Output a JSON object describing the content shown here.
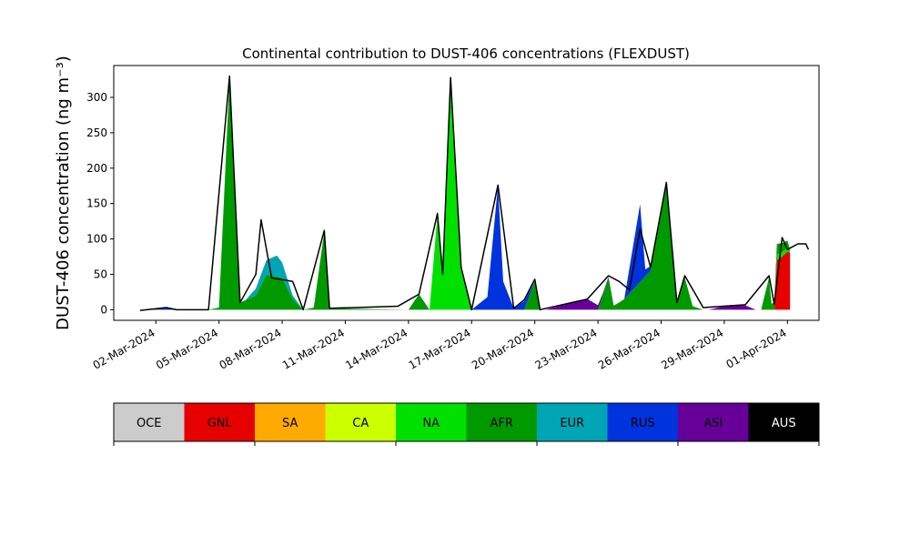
{
  "chart_data": {
    "type": "area",
    "stacked": true,
    "title": "Continental contribution to DUST-406 concentrations (FLEXDUST)",
    "ylabel": "DUST-406 concentration (ng m⁻³)",
    "xlabel": "",
    "x_ticks": [
      "02-Mar-2024",
      "05-Mar-2024",
      "08-Mar-2024",
      "11-Mar-2024",
      "14-Mar-2024",
      "17-Mar-2024",
      "20-Mar-2024",
      "23-Mar-2024",
      "26-Mar-2024",
      "29-Mar-2024",
      "01-Apr-2024"
    ],
    "y_ticks": [
      0,
      50,
      100,
      150,
      200,
      250,
      300
    ],
    "xlim": [
      "2024-02-29T00:00",
      "2024-04-02T12:00"
    ],
    "ylim": [
      -15,
      345
    ],
    "grid": false,
    "legend_placement": "bottom colorbar",
    "series": [
      {
        "name": "OCE",
        "color": "#cccccc",
        "points": []
      },
      {
        "name": "GNL",
        "color": "#e60000",
        "points": [
          [
            "2024-03-31T09:00",
            0
          ],
          [
            "2024-03-31T12:00",
            70
          ],
          [
            "2024-03-31T18:00",
            75
          ],
          [
            "2024-04-01T00:00",
            82
          ],
          [
            "2024-04-01T03:00",
            80
          ]
        ]
      },
      {
        "name": "SA",
        "color": "#ffaa00",
        "points": []
      },
      {
        "name": "CA",
        "color": "#ccff00",
        "points": []
      },
      {
        "name": "NA",
        "color": "#00e000",
        "points": [
          [
            "2024-03-15T00:00",
            0
          ],
          [
            "2024-03-15T09:00",
            135
          ],
          [
            "2024-03-15T15:00",
            50
          ],
          [
            "2024-03-16T00:00",
            326
          ],
          [
            "2024-03-16T12:00",
            60
          ],
          [
            "2024-03-17T00:00",
            0
          ],
          [
            "2024-03-31T09:00",
            0
          ],
          [
            "2024-03-31T12:00",
            8
          ],
          [
            "2024-04-01T03:00",
            5
          ]
        ]
      },
      {
        "name": "AFR",
        "color": "#009900",
        "points": [
          [
            "2024-03-04T12:00",
            0
          ],
          [
            "2024-03-05T00:00",
            3
          ],
          [
            "2024-03-05T12:00",
            328
          ],
          [
            "2024-03-06T00:00",
            10
          ],
          [
            "2024-03-06T18:00",
            20
          ],
          [
            "2024-03-07T06:00",
            50
          ],
          [
            "2024-03-08T00:00",
            45
          ],
          [
            "2024-03-08T12:00",
            15
          ],
          [
            "2024-03-09T00:00",
            0
          ],
          [
            "2024-03-09T12:00",
            3
          ],
          [
            "2024-03-10T00:00",
            110
          ],
          [
            "2024-03-10T06:00",
            2
          ],
          [
            "2024-03-14T00:00",
            0
          ],
          [
            "2024-03-14T12:00",
            22
          ],
          [
            "2024-03-15T00:00",
            0
          ],
          [
            "2024-03-19T12:00",
            0
          ],
          [
            "2024-03-20T00:00",
            40
          ],
          [
            "2024-03-20T06:00",
            0
          ],
          [
            "2024-03-23T00:00",
            0
          ],
          [
            "2024-03-23T12:00",
            45
          ],
          [
            "2024-03-23T18:00",
            5
          ],
          [
            "2024-03-24T06:00",
            15
          ],
          [
            "2024-03-25T12:00",
            55
          ],
          [
            "2024-03-26T06:00",
            178
          ],
          [
            "2024-03-26T18:00",
            10
          ],
          [
            "2024-03-27T03:00",
            45
          ],
          [
            "2024-03-27T12:00",
            5
          ],
          [
            "2024-03-28T00:00",
            0
          ],
          [
            "2024-03-30T18:00",
            0
          ],
          [
            "2024-03-31T03:00",
            45
          ],
          [
            "2024-03-31T06:00",
            8
          ],
          [
            "2024-03-31T12:00",
            15
          ],
          [
            "2024-04-01T00:00",
            10
          ]
        ]
      },
      {
        "name": "EUR",
        "color": "#00a5b5",
        "points": [
          [
            "2024-03-06T06:00",
            0
          ],
          [
            "2024-03-07T06:00",
            20
          ],
          [
            "2024-03-07T18:00",
            30
          ],
          [
            "2024-03-08T12:00",
            5
          ],
          [
            "2024-03-09T00:00",
            0
          ]
        ]
      },
      {
        "name": "RUS",
        "color": "#0033dd",
        "points": [
          [
            "2024-03-01T12:00",
            0
          ],
          [
            "2024-03-02T12:00",
            3
          ],
          [
            "2024-03-03T00:00",
            0
          ],
          [
            "2024-03-17T00:00",
            0
          ],
          [
            "2024-03-17T18:00",
            18
          ],
          [
            "2024-03-18T06:00",
            176
          ],
          [
            "2024-03-18T12:00",
            40
          ],
          [
            "2024-03-19T00:00",
            2
          ],
          [
            "2024-03-19T12:00",
            12
          ],
          [
            "2024-03-20T00:00",
            0
          ],
          [
            "2024-03-24T06:00",
            0
          ],
          [
            "2024-03-25T00:00",
            110
          ],
          [
            "2024-03-25T06:00",
            10
          ],
          [
            "2024-03-26T00:00",
            0
          ]
        ]
      },
      {
        "name": "ASI",
        "color": "#660099",
        "points": [
          [
            "2024-03-20T12:00",
            0
          ],
          [
            "2024-03-21T12:00",
            8
          ],
          [
            "2024-03-22T12:00",
            15
          ],
          [
            "2024-03-23T06:00",
            2
          ],
          [
            "2024-03-24T00:00",
            0
          ],
          [
            "2024-03-28T06:00",
            0
          ],
          [
            "2024-03-29T00:00",
            5
          ],
          [
            "2024-03-30T00:00",
            6
          ],
          [
            "2024-03-30T12:00",
            0
          ]
        ]
      },
      {
        "name": "AUS",
        "color": "#000000",
        "points": []
      }
    ],
    "total_line": {
      "color": "#000000",
      "points": [
        [
          "2024-03-01T06:00",
          -1
        ],
        [
          "2024-03-02T12:00",
          3
        ],
        [
          "2024-03-03T00:00",
          0
        ],
        [
          "2024-03-04T12:00",
          0
        ],
        [
          "2024-03-05T12:00",
          330
        ],
        [
          "2024-03-06T00:00",
          10
        ],
        [
          "2024-03-06T18:00",
          50
        ],
        [
          "2024-03-07T00:00",
          127
        ],
        [
          "2024-03-07T12:00",
          45
        ],
        [
          "2024-03-08T12:00",
          40
        ],
        [
          "2024-03-09T00:00",
          0
        ],
        [
          "2024-03-10T00:00",
          112
        ],
        [
          "2024-03-10T06:00",
          2
        ],
        [
          "2024-03-13T12:00",
          5
        ],
        [
          "2024-03-14T12:00",
          22
        ],
        [
          "2024-03-15T09:00",
          136
        ],
        [
          "2024-03-15T15:00",
          50
        ],
        [
          "2024-03-16T00:00",
          328
        ],
        [
          "2024-03-16T12:00",
          60
        ],
        [
          "2024-03-17T00:00",
          0
        ],
        [
          "2024-03-18T06:00",
          176
        ],
        [
          "2024-03-19T00:00",
          2
        ],
        [
          "2024-03-19T12:00",
          14
        ],
        [
          "2024-03-20T00:00",
          43
        ],
        [
          "2024-03-20T06:00",
          0
        ],
        [
          "2024-03-22T12:00",
          15
        ],
        [
          "2024-03-23T12:00",
          48
        ],
        [
          "2024-03-24T00:00",
          40
        ],
        [
          "2024-03-24T12:00",
          28
        ],
        [
          "2024-03-25T00:00",
          114
        ],
        [
          "2024-03-25T12:00",
          60
        ],
        [
          "2024-03-26T06:00",
          180
        ],
        [
          "2024-03-26T18:00",
          10
        ],
        [
          "2024-03-27T03:00",
          48
        ],
        [
          "2024-03-28T00:00",
          3
        ],
        [
          "2024-03-30T00:00",
          7
        ],
        [
          "2024-03-31T03:00",
          48
        ],
        [
          "2024-03-31T09:00",
          8
        ],
        [
          "2024-03-31T18:00",
          102
        ],
        [
          "2024-04-01T00:00",
          85
        ],
        [
          "2024-04-01T12:00",
          93
        ],
        [
          "2024-04-01T21:00",
          93
        ],
        [
          "2024-04-02T00:00",
          85
        ]
      ]
    }
  },
  "legend": {
    "items": [
      {
        "label": "OCE",
        "color": "#cccccc",
        "text_color": "#000000"
      },
      {
        "label": "GNL",
        "color": "#e60000",
        "text_color": "#000000"
      },
      {
        "label": "SA",
        "color": "#ffaa00",
        "text_color": "#000000"
      },
      {
        "label": "CA",
        "color": "#ccff00",
        "text_color": "#000000"
      },
      {
        "label": "NA",
        "color": "#00e000",
        "text_color": "#000000"
      },
      {
        "label": "AFR",
        "color": "#009900",
        "text_color": "#000000"
      },
      {
        "label": "EUR",
        "color": "#00a5b5",
        "text_color": "#000000"
      },
      {
        "label": "RUS",
        "color": "#0033dd",
        "text_color": "#000000"
      },
      {
        "label": "ASI",
        "color": "#660099",
        "text_color": "#000000"
      },
      {
        "label": "AUS",
        "color": "#000000",
        "text_color": "#ffffff"
      }
    ]
  }
}
